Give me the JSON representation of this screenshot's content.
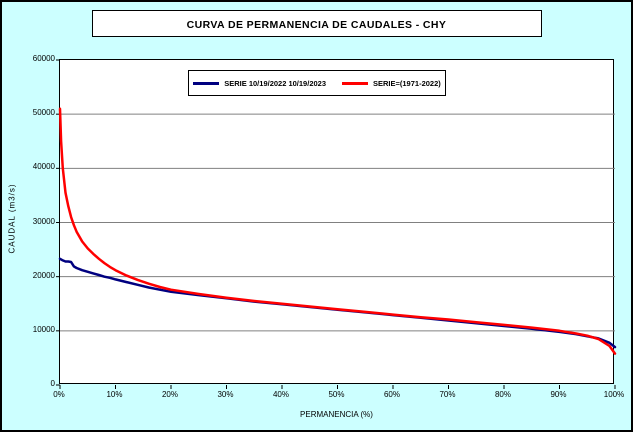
{
  "title": "CURVA DE PERMANENCIA DE CAUDALES - CHY",
  "colors": {
    "background": "#CCFFFF",
    "plot_background": "#FFFFFF",
    "gridline": "#808080",
    "axis": "#000000",
    "serie_2022_2023": "#000080",
    "serie_1971_2022": "#FF0000"
  },
  "chart_data": {
    "type": "line",
    "title": "CURVA DE PERMANENCIA DE CAUDALES - CHY",
    "xlabel": "PERMANENCIA (%)",
    "ylabel": "CAUDAL (m3/s)",
    "xlim": [
      0,
      100
    ],
    "ylim": [
      0,
      60000
    ],
    "grid": "horizontal",
    "legend_position": "top-center",
    "x_tick_values": [
      0,
      10,
      20,
      30,
      40,
      50,
      60,
      70,
      80,
      90,
      100
    ],
    "x_tick_labels": [
      "0%",
      "10%",
      "20%",
      "30%",
      "40%",
      "50%",
      "60%",
      "70%",
      "80%",
      "90%",
      "100%"
    ],
    "y_ticks": [
      0,
      10000,
      20000,
      30000,
      40000,
      50000,
      60000
    ],
    "series": [
      {
        "name": "SERIE 10/19/2022 10/19/2023",
        "color": "#000080",
        "x": [
          0,
          0.5,
          1,
          1.5,
          2,
          2.5,
          3,
          4,
          5,
          6,
          7,
          8,
          9,
          10,
          12,
          14,
          16,
          18,
          20,
          25,
          30,
          35,
          40,
          45,
          50,
          55,
          60,
          65,
          70,
          75,
          80,
          85,
          90,
          93,
          95,
          97,
          99,
          100
        ],
        "values": [
          23300,
          23000,
          22800,
          22800,
          22700,
          21900,
          21600,
          21200,
          20900,
          20600,
          20300,
          20000,
          19800,
          19500,
          19000,
          18500,
          18000,
          17600,
          17200,
          16600,
          16000,
          15400,
          14900,
          14400,
          13900,
          13400,
          12900,
          12400,
          11900,
          11400,
          10900,
          10400,
          9800,
          9400,
          9000,
          8600,
          7800,
          7000
        ]
      },
      {
        "name": "SERIE=(1971-2022)",
        "color": "#FF0000",
        "x": [
          0,
          0.2,
          0.5,
          1,
          1.5,
          2,
          2.5,
          3,
          4,
          5,
          6,
          7,
          8,
          9,
          10,
          12,
          14,
          16,
          18,
          20,
          25,
          30,
          35,
          40,
          45,
          50,
          55,
          60,
          65,
          70,
          75,
          80,
          85,
          90,
          93,
          95,
          97,
          99,
          100
        ],
        "values": [
          51000,
          45000,
          40000,
          35500,
          33000,
          31000,
          29500,
          28300,
          26500,
          25200,
          24200,
          23300,
          22500,
          21800,
          21200,
          20200,
          19400,
          18700,
          18100,
          17600,
          16800,
          16100,
          15500,
          15000,
          14500,
          14000,
          13500,
          13000,
          12500,
          12100,
          11600,
          11100,
          10600,
          10000,
          9500,
          9100,
          8500,
          7200,
          5800
        ]
      }
    ]
  }
}
